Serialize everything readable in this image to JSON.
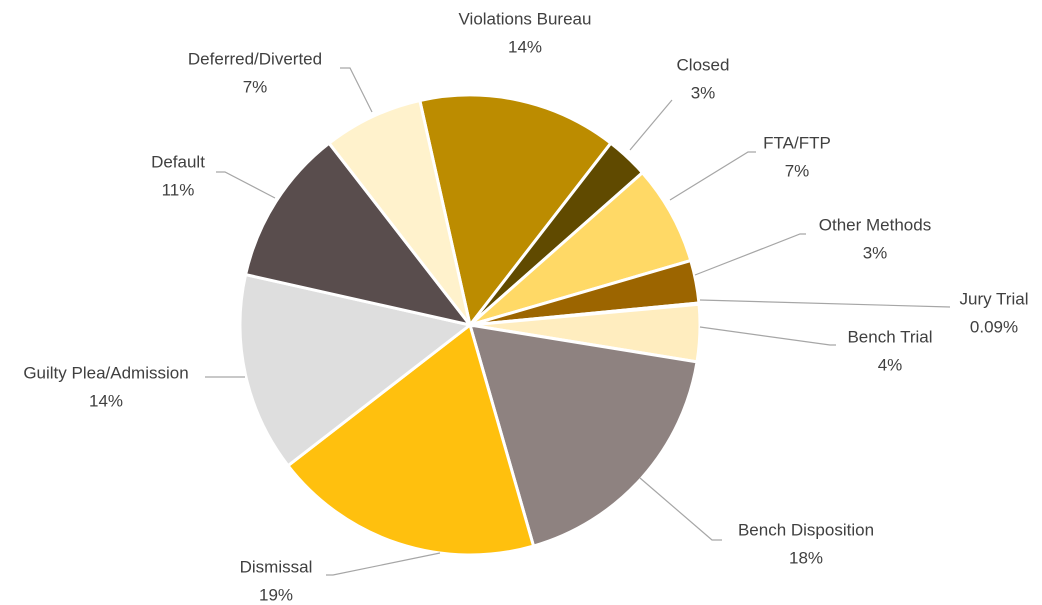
{
  "chart_data": {
    "type": "pie",
    "categories": [
      "Violations Bureau",
      "Closed",
      "FTA/FTP",
      "Other Methods",
      "Jury Trial",
      "Bench Trial",
      "Bench Disposition",
      "Dismissal",
      "Guilty Plea/Admission",
      "Default",
      "Deferred/Diverted"
    ],
    "values": [
      14,
      3,
      7,
      3,
      0.09,
      4,
      18,
      19,
      14,
      11,
      7
    ],
    "value_labels": [
      "14%",
      "3%",
      "7%",
      "3%",
      "0.09%",
      "4%",
      "18%",
      "19%",
      "14%",
      "11%",
      "7%"
    ],
    "colors": [
      "#bc8c00",
      "#604a00",
      "#ffd966",
      "#9c6500",
      "#7f6000",
      "#ffedbf",
      "#8e8280",
      "#ffc00e",
      "#dedede",
      "#594d4d",
      "#fff2cc"
    ]
  }
}
